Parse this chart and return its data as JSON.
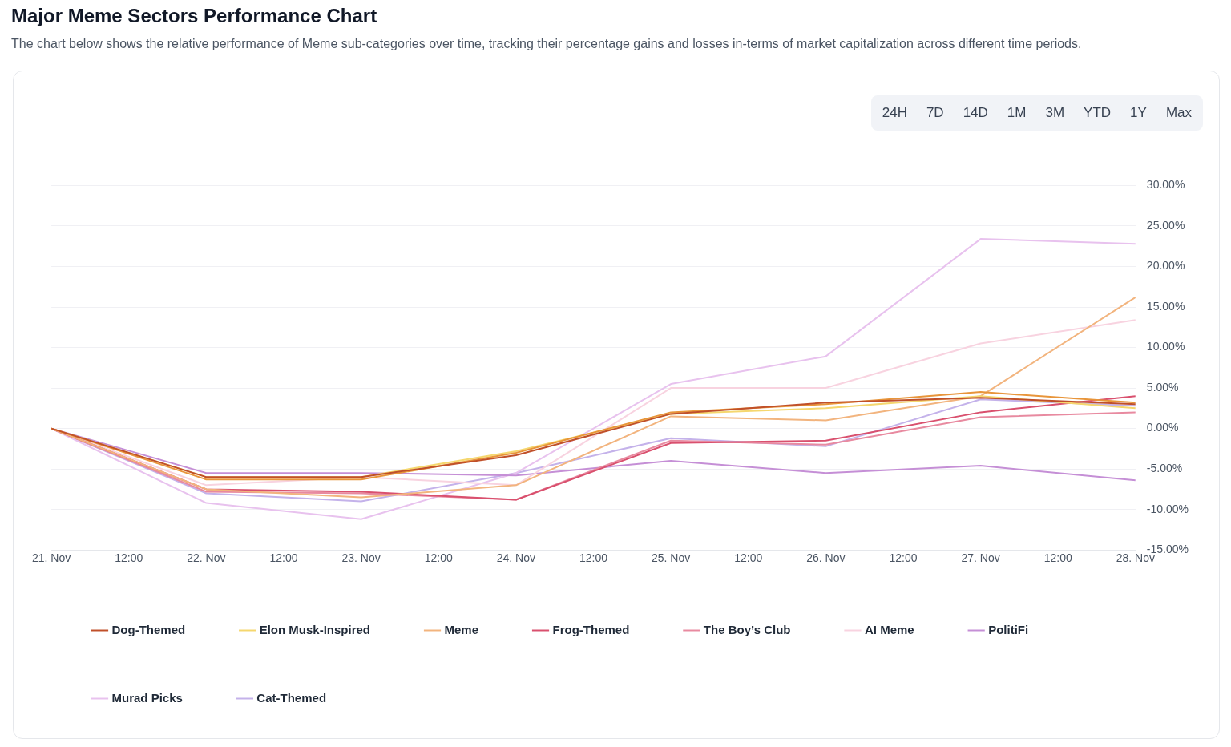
{
  "chart_data": {
    "type": "line",
    "title": "Major Meme Sectors Performance Chart",
    "subtitle": "The chart below shows the relative performance of Meme sub-categories over time, tracking their percentage gains and losses in-terms of market capitalization across different time periods.",
    "annotations": [
      "24H",
      "7D",
      "14D",
      "1M",
      "3M",
      "YTD",
      "1Y",
      "Max"
    ],
    "x": [
      "--11-21",
      "--11-22",
      "--11-23",
      "--11-24",
      "--11-25",
      "--11-26",
      "--11-27",
      "--11-28"
    ],
    "xlim": [
      "--11-21",
      "--11-28"
    ],
    "xticks": [
      {
        "value": "--11-21",
        "label": "21. Nov"
      },
      {
        "value": "--11-21T12:00",
        "label": "12:00"
      },
      {
        "value": "--11-22",
        "label": "22. Nov"
      },
      {
        "value": "--11-22T12:00",
        "label": "12:00"
      },
      {
        "value": "--11-23",
        "label": "23. Nov"
      },
      {
        "value": "--11-23T12:00",
        "label": "12:00"
      },
      {
        "value": "--11-24",
        "label": "24. Nov"
      },
      {
        "value": "--11-24T12:00",
        "label": "12:00"
      },
      {
        "value": "--11-25",
        "label": "25. Nov"
      },
      {
        "value": "--11-25T12:00",
        "label": "12:00"
      },
      {
        "value": "--11-26",
        "label": "26. Nov"
      },
      {
        "value": "--11-26T12:00",
        "label": "12:00"
      },
      {
        "value": "--11-27",
        "label": "27. Nov"
      },
      {
        "value": "--11-27T12:00",
        "label": "12:00"
      },
      {
        "value": "--11-28",
        "label": "28. Nov"
      }
    ],
    "ylim": [
      -15,
      30
    ],
    "yticks": [
      {
        "value": -15,
        "label": "-15.00%"
      },
      {
        "value": -10,
        "label": "-10.00%"
      },
      {
        "value": -5,
        "label": "-5.00%"
      },
      {
        "value": 0,
        "label": "0.00%"
      },
      {
        "value": 5,
        "label": "5.00%"
      },
      {
        "value": 10,
        "label": "10.00%"
      },
      {
        "value": 15,
        "label": "15.00%"
      },
      {
        "value": 20,
        "label": "20.00%"
      },
      {
        "value": 25,
        "label": "25.00%"
      },
      {
        "value": 30,
        "label": "30.00%"
      }
    ],
    "grid": "y",
    "legend": "bottom",
    "marker": "none",
    "line_style": "solid",
    "series": [
      {
        "name": "Dog-Themed",
        "color": "#c0502a",
        "values": [
          0,
          -6.0,
          -6.0,
          -3.3,
          1.8,
          3.2,
          3.8,
          3.0
        ]
      },
      {
        "color": "#e8953a",
        "values": [
          0,
          -6.3,
          -6.3,
          -3.0,
          2.0,
          3.0,
          4.5,
          3.2
        ]
      },
      {
        "name": "Elon Musk-Inspired",
        "color": "#f5d76e",
        "values": [
          0,
          -6.0,
          -6.0,
          -2.8,
          1.8,
          2.5,
          4.0,
          2.5
        ]
      },
      {
        "name": "Meme",
        "color": "#f2b47e",
        "values": [
          0,
          -7.5,
          -8.5,
          -7.0,
          1.5,
          1.0,
          4.0,
          16.2
        ]
      },
      {
        "name": "Frog-Themed",
        "color": "#d9506e",
        "values": [
          0,
          -7.5,
          -7.8,
          -8.8,
          -1.8,
          -1.5,
          2.0,
          4.0
        ]
      },
      {
        "name": "The Boy’s Club",
        "color": "#e88aa0",
        "values": [
          0,
          -7.8,
          -8.0,
          -8.8,
          -1.5,
          -2.0,
          1.4,
          2.0
        ]
      },
      {
        "name": "AI Meme",
        "color": "#f8d3e0",
        "values": [
          0,
          -7.0,
          -6.0,
          -7.0,
          5.0,
          5.0,
          10.5,
          13.4
        ]
      },
      {
        "name": "PolitiFi",
        "color": "#c58fd6",
        "values": [
          0,
          -5.5,
          -5.5,
          -5.8,
          -4.0,
          -5.5,
          -4.6,
          -6.4
        ]
      },
      {
        "name": "Murad Picks",
        "color": "#e8c2ee",
        "values": [
          0,
          -9.2,
          -11.2,
          -5.5,
          5.5,
          8.9,
          23.4,
          22.8
        ]
      },
      {
        "name": "Cat-Themed",
        "color": "#c4b2ea",
        "values": [
          0,
          -8.0,
          -9.0,
          -5.5,
          -1.2,
          -2.2,
          3.6,
          2.8
        ]
      }
    ]
  }
}
